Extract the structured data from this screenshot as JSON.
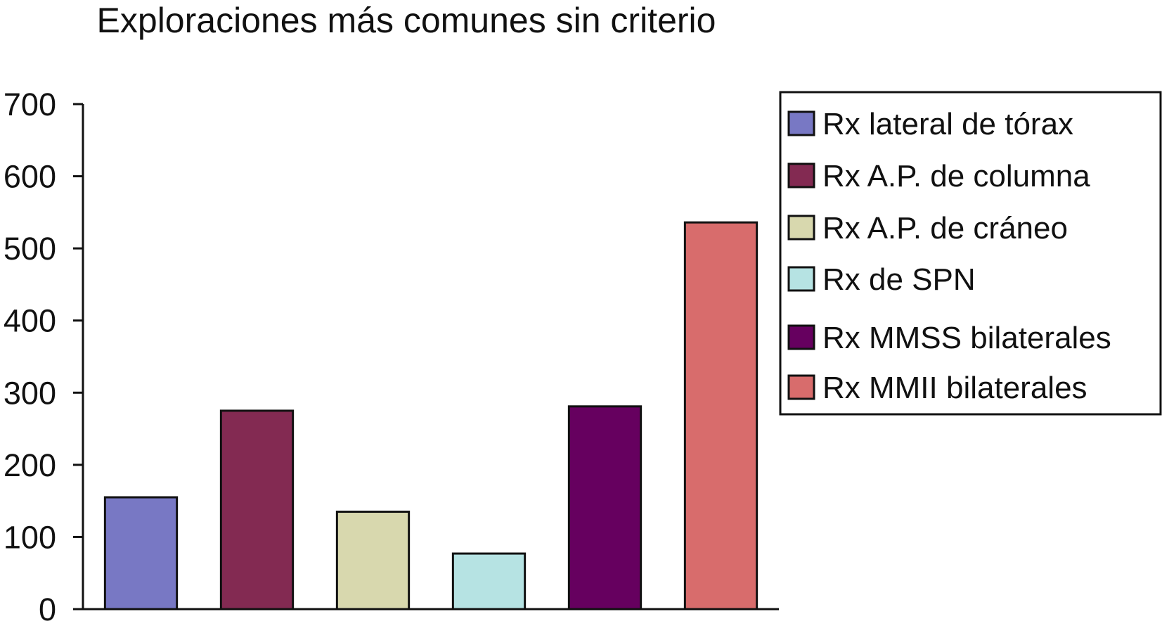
{
  "chart_data": {
    "type": "bar",
    "title": "Exploraciones más comunes sin criterio",
    "xlabel": "",
    "ylabel": "",
    "categories": [
      "Rx lateral de tórax",
      "Rx A.P. de columna",
      "Rx A.P. de cráneo",
      "Rx de SPN",
      "Rx MMSS bilaterales",
      "Rx MMII bilaterales"
    ],
    "values": [
      155,
      275,
      135,
      77,
      281,
      536
    ],
    "colors": [
      "#7878C4",
      "#832A52",
      "#D8D8AE",
      "#B6E3E3",
      "#66005F",
      "#D86C6C"
    ],
    "ylim": [
      0,
      700
    ],
    "yticks": [
      "0",
      "100",
      "200",
      "300",
      "400",
      "500",
      "600",
      "700"
    ],
    "grid": false,
    "legend": "right"
  }
}
